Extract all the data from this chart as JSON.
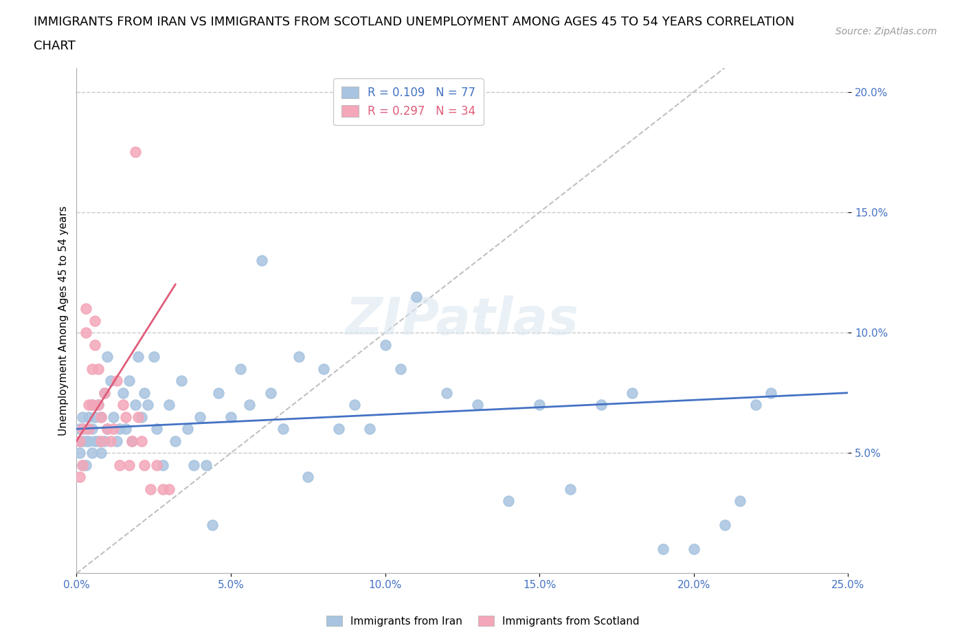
{
  "title_line1": "IMMIGRANTS FROM IRAN VS IMMIGRANTS FROM SCOTLAND UNEMPLOYMENT AMONG AGES 45 TO 54 YEARS CORRELATION",
  "title_line2": "CHART",
  "source": "Source: ZipAtlas.com",
  "ylabel": "Unemployment Among Ages 45 to 54 years",
  "xlabel_iran": "Immigrants from Iran",
  "xlabel_scotland": "Immigrants from Scotland",
  "xlim": [
    0.0,
    0.25
  ],
  "ylim": [
    0.0,
    0.21
  ],
  "yticks": [
    0.05,
    0.1,
    0.15,
    0.2
  ],
  "ytick_labels": [
    "5.0%",
    "10.0%",
    "15.0%",
    "20.0%"
  ],
  "xticks": [
    0.0,
    0.05,
    0.1,
    0.15,
    0.2,
    0.25
  ],
  "xtick_labels": [
    "0.0%",
    "5.0%",
    "10.0%",
    "15.0%",
    "20.0%",
    "25.0%"
  ],
  "iran_R": 0.109,
  "iran_N": 77,
  "scotland_R": 0.297,
  "scotland_N": 34,
  "iran_color": "#a8c4e0",
  "scotland_color": "#f4a7b9",
  "iran_line_color": "#4472c4",
  "scotland_line_color": "#e05c7a",
  "diagonal_color": "#c0c0c0",
  "iran_x": [
    0.001,
    0.001,
    0.001,
    0.002,
    0.002,
    0.002,
    0.003,
    0.003,
    0.003,
    0.004,
    0.004,
    0.005,
    0.005,
    0.005,
    0.006,
    0.006,
    0.007,
    0.007,
    0.008,
    0.008,
    0.009,
    0.009,
    0.01,
    0.01,
    0.011,
    0.012,
    0.013,
    0.014,
    0.015,
    0.016,
    0.017,
    0.018,
    0.019,
    0.02,
    0.021,
    0.022,
    0.023,
    0.025,
    0.026,
    0.028,
    0.03,
    0.032,
    0.034,
    0.036,
    0.038,
    0.04,
    0.042,
    0.044,
    0.046,
    0.05,
    0.053,
    0.056,
    0.06,
    0.063,
    0.067,
    0.072,
    0.075,
    0.08,
    0.085,
    0.09,
    0.095,
    0.1,
    0.105,
    0.11,
    0.12,
    0.13,
    0.14,
    0.15,
    0.16,
    0.17,
    0.18,
    0.19,
    0.2,
    0.21,
    0.215,
    0.22,
    0.225
  ],
  "iran_y": [
    0.06,
    0.055,
    0.05,
    0.065,
    0.055,
    0.045,
    0.06,
    0.055,
    0.045,
    0.065,
    0.055,
    0.07,
    0.06,
    0.05,
    0.065,
    0.055,
    0.07,
    0.055,
    0.065,
    0.05,
    0.075,
    0.055,
    0.09,
    0.06,
    0.08,
    0.065,
    0.055,
    0.06,
    0.075,
    0.06,
    0.08,
    0.055,
    0.07,
    0.09,
    0.065,
    0.075,
    0.07,
    0.09,
    0.06,
    0.045,
    0.07,
    0.055,
    0.08,
    0.06,
    0.045,
    0.065,
    0.045,
    0.02,
    0.075,
    0.065,
    0.085,
    0.07,
    0.13,
    0.075,
    0.06,
    0.09,
    0.04,
    0.085,
    0.06,
    0.07,
    0.06,
    0.095,
    0.085,
    0.115,
    0.075,
    0.07,
    0.03,
    0.07,
    0.035,
    0.07,
    0.075,
    0.01,
    0.01,
    0.02,
    0.03,
    0.07,
    0.075
  ],
  "scotland_x": [
    0.001,
    0.001,
    0.002,
    0.002,
    0.003,
    0.003,
    0.004,
    0.004,
    0.005,
    0.005,
    0.006,
    0.006,
    0.007,
    0.007,
    0.008,
    0.008,
    0.009,
    0.01,
    0.011,
    0.012,
    0.013,
    0.014,
    0.015,
    0.016,
    0.017,
    0.018,
    0.019,
    0.02,
    0.021,
    0.022,
    0.024,
    0.026,
    0.028,
    0.03
  ],
  "scotland_y": [
    0.055,
    0.04,
    0.06,
    0.045,
    0.11,
    0.1,
    0.07,
    0.06,
    0.085,
    0.07,
    0.105,
    0.095,
    0.085,
    0.07,
    0.065,
    0.055,
    0.075,
    0.06,
    0.055,
    0.06,
    0.08,
    0.045,
    0.07,
    0.065,
    0.045,
    0.055,
    0.175,
    0.065,
    0.055,
    0.045,
    0.035,
    0.045,
    0.035,
    0.035
  ],
  "background_color": "#ffffff",
  "grid_color": "#c8c8c8",
  "tick_color": "#4472c4",
  "title_fontsize": 13,
  "label_fontsize": 11,
  "tick_fontsize": 11,
  "legend_fontsize": 12,
  "source_fontsize": 10
}
